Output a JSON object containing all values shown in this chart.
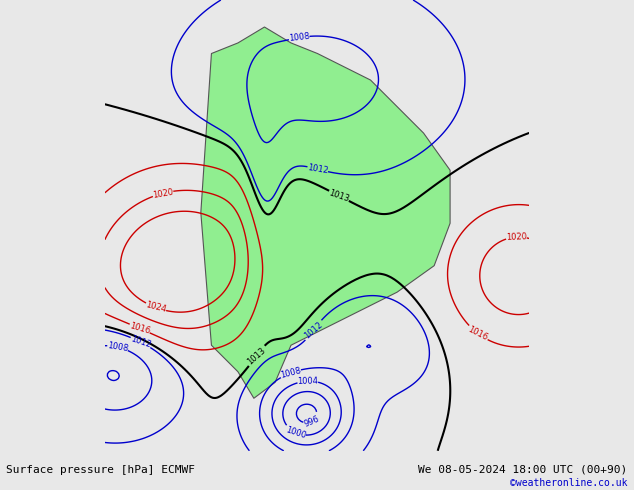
{
  "title_left": "Surface pressure [hPa] ECMWF",
  "title_right": "We 08-05-2024 18:00 UTC (00+90)",
  "credit": "©weatheronline.co.uk",
  "credit_color": "#0000cc",
  "bg_color": "#e8e8e8",
  "land_color": "#90ee90",
  "ocean_color": "#e8e8e8",
  "text_color_black": "#000000",
  "text_color_blue": "#0000cc",
  "text_color_red": "#cc0000",
  "contour_black": "#000000",
  "contour_blue": "#0000cc",
  "contour_red": "#cc0000",
  "figsize": [
    6.34,
    4.9
  ],
  "dpi": 100
}
